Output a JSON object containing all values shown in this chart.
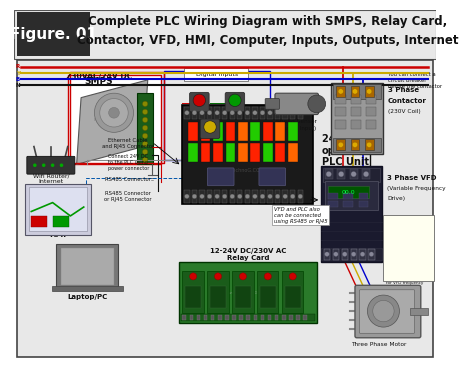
{
  "title_box_color": "#2c2c2c",
  "title_box_text": "Figure. 01",
  "title_text_line1": "Complete PLC Wiring Diagram with SMPS, Relay Card,",
  "title_text_line2": "Contactor, VFD, HMI, Computer, Inputs, Outputs, Internet",
  "title_bg": "#e8e8e8",
  "title_text_color": "#111111",
  "title_box_text_color": "#ffffff",
  "background_color": "#ffffff",
  "diagram_bg": "#e8e8e8",
  "border_color": "#333333",
  "wire_R": "#cc0000",
  "wire_Y": "#ccaa00",
  "wire_B": "#0000cc",
  "wire_N": "#111111",
  "wire_G": "#006600",
  "smps_bg": "#cccccc",
  "plc_color": "#222222",
  "relay_color": "#2a7a2a",
  "vfd_color": "#1a1a2e",
  "contactor_color": "#888888",
  "motor_color": "#999999",
  "hmi_color": "#bbbbcc",
  "laptop_color": "#aaaaaa",
  "router_color": "#444444",
  "title_fontsize": 8.5,
  "label_fontsize": 5.0
}
